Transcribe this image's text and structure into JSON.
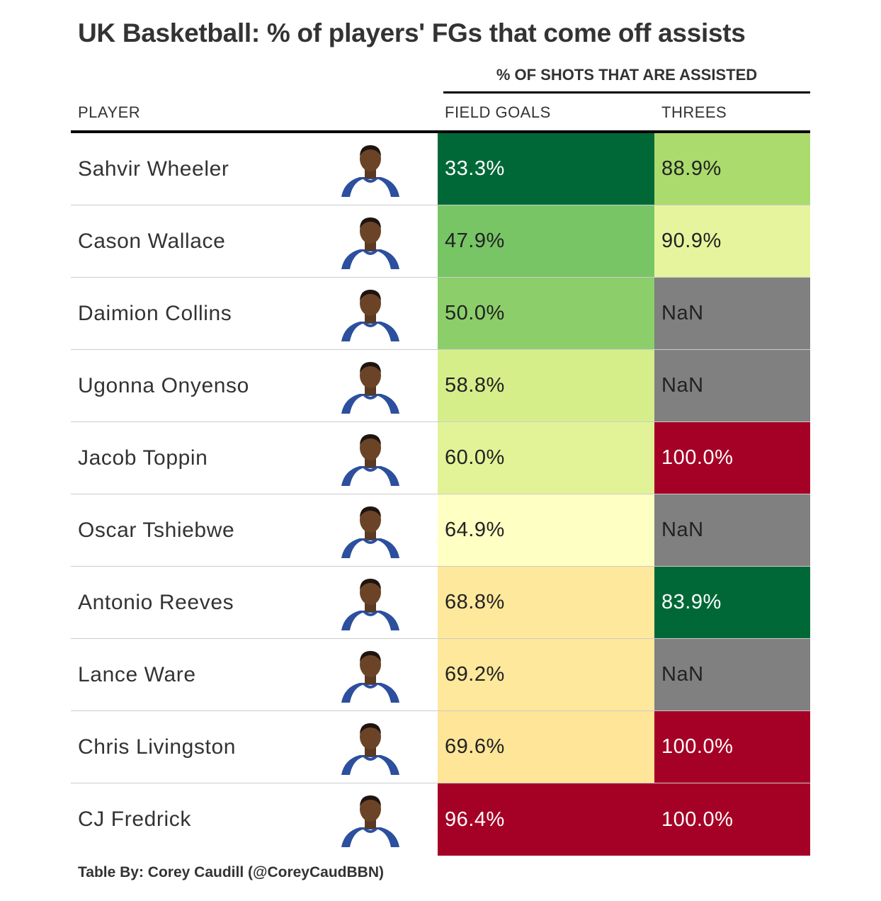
{
  "title": "UK Basketball: % of players' FGs that come off assists",
  "spanner_label": "% OF SHOTS THAT ARE ASSISTED",
  "columns": {
    "player": "PLAYER",
    "field_goals": "FIELD GOALS",
    "threes": "THREES"
  },
  "credit": "Table By: Corey Caudill (@CoreyCaudBBN)",
  "colors": {
    "na": "#808080",
    "text_dark": "#222222",
    "text_light": "#ffffff"
  },
  "chart_data": {
    "type": "table",
    "columns": [
      "PLAYER",
      "FIELD GOALS",
      "THREES"
    ],
    "rows": [
      {
        "player": "Sahvir Wheeler",
        "fg": "33.3%",
        "fg_value": 33.3,
        "fg_color": "#006837",
        "threes": "88.9%",
        "threes_value": 88.9,
        "threes_color": "#ABDB6D"
      },
      {
        "player": "Cason Wallace",
        "fg": "47.9%",
        "fg_value": 47.9,
        "fg_color": "#78C566",
        "threes": "90.9%",
        "threes_value": 90.9,
        "threes_color": "#E6F59D"
      },
      {
        "player": "Daimion Collins",
        "fg": "50.0%",
        "fg_value": 50.0,
        "fg_color": "#8CCF6A",
        "threes": "NaN",
        "threes_value": null,
        "threes_color": "#808080"
      },
      {
        "player": "Ugonna Onyenso",
        "fg": "58.8%",
        "fg_value": 58.8,
        "fg_color": "#D6EE8A",
        "threes": "NaN",
        "threes_value": null,
        "threes_color": "#808080"
      },
      {
        "player": "Jacob Toppin",
        "fg": "60.0%",
        "fg_value": 60.0,
        "fg_color": "#E2F397",
        "threes": "100.0%",
        "threes_value": 100.0,
        "threes_color": "#A50026"
      },
      {
        "player": "Oscar Tshiebwe",
        "fg": "64.9%",
        "fg_value": 64.9,
        "fg_color": "#FEFFC2",
        "threes": "NaN",
        "threes_value": null,
        "threes_color": "#808080"
      },
      {
        "player": "Antonio Reeves",
        "fg": "68.8%",
        "fg_value": 68.8,
        "fg_color": "#FEE89B",
        "threes": "83.9%",
        "threes_value": 83.9,
        "threes_color": "#006837"
      },
      {
        "player": "Lance Ware",
        "fg": "69.2%",
        "fg_value": 69.2,
        "fg_color": "#FEE89B",
        "threes": "NaN",
        "threes_value": null,
        "threes_color": "#808080"
      },
      {
        "player": "Chris Livingston",
        "fg": "69.6%",
        "fg_value": 69.6,
        "fg_color": "#FEE597",
        "threes": "100.0%",
        "threes_value": 100.0,
        "threes_color": "#A50026"
      },
      {
        "player": "CJ Fredrick",
        "fg": "96.4%",
        "fg_value": 96.4,
        "fg_color": "#A50026",
        "threes": "100.0%",
        "threes_value": 100.0,
        "threes_color": "#A50026"
      }
    ]
  }
}
